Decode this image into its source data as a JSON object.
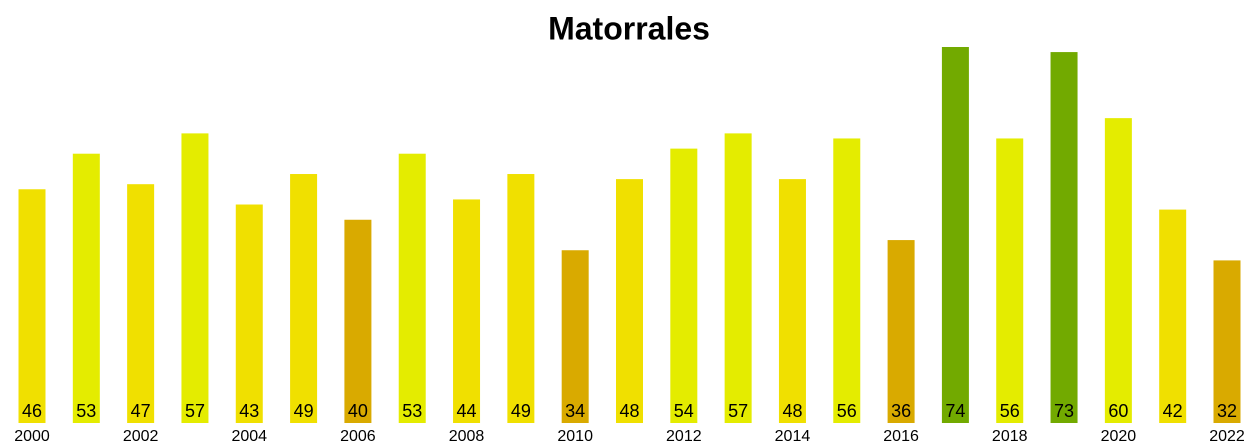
{
  "chart_data": {
    "type": "bar",
    "title": "Matorrales",
    "categories": [
      "2000",
      null,
      "2002",
      null,
      "2004",
      null,
      "2006",
      null,
      "2008",
      null,
      "2010",
      null,
      "2012",
      null,
      "2014",
      null,
      "2016",
      null,
      "2018",
      null,
      "2020",
      null,
      "2022"
    ],
    "values": [
      46,
      53,
      47,
      57,
      43,
      49,
      40,
      53,
      44,
      49,
      34,
      48,
      54,
      57,
      48,
      56,
      36,
      74,
      56,
      73,
      60,
      42,
      32
    ],
    "colors": [
      "#f0e000",
      "#e4ec00",
      "#f0e000",
      "#e4ec00",
      "#f0e000",
      "#f0e000",
      "#d9aa00",
      "#e4ec00",
      "#f0e000",
      "#f0e000",
      "#d9aa00",
      "#f0e000",
      "#e4ec00",
      "#e4ec00",
      "#f0e000",
      "#e4ec00",
      "#d9aa00",
      "#72aa00",
      "#e4ec00",
      "#72aa00",
      "#e4ec00",
      "#f0e000",
      "#d9aa00"
    ]
  }
}
